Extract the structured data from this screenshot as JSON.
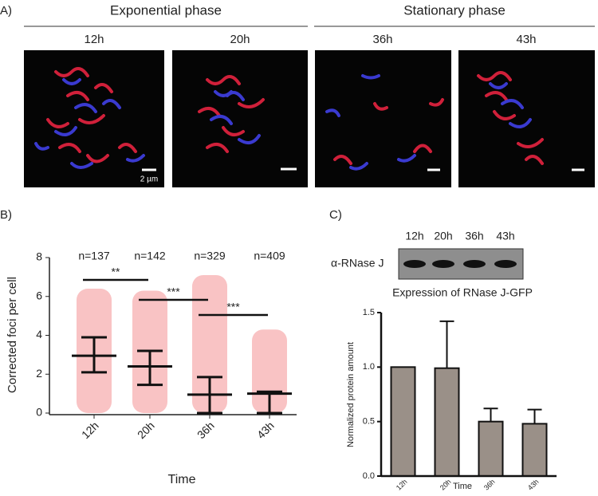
{
  "panels": {
    "a": "A)",
    "b": "B)",
    "c": "C)"
  },
  "phases": [
    "Exponential phase",
    "Stationary phase"
  ],
  "images": [
    {
      "label": "12h",
      "scale": "2 µm"
    },
    {
      "label": "20h"
    },
    {
      "label": "36h"
    },
    {
      "label": "43h"
    }
  ],
  "blot": {
    "antibody": "α-RNase J",
    "lanes": [
      "12h",
      "20h",
      "36h",
      "43h"
    ]
  },
  "chart_data": [
    {
      "type": "dotplot",
      "x_label": "Time",
      "y_label": "Corrected foci per cell",
      "categories": [
        "12h",
        "20h",
        "36h",
        "43h"
      ],
      "n_labels": [
        "n=137",
        "n=142",
        "n=329",
        "n=409"
      ],
      "medians": [
        2.95,
        2.4,
        0.95,
        1.0
      ],
      "lower": [
        2.1,
        1.45,
        0,
        0
      ],
      "upper": [
        3.9,
        3.2,
        1.85,
        1.1
      ],
      "min": [
        0,
        0,
        0,
        0
      ],
      "max": [
        6.4,
        6.3,
        7.1,
        4.3
      ],
      "color": "#e8262b",
      "ylim": [
        0,
        8
      ],
      "yticks": [
        0,
        2,
        4,
        6,
        8
      ],
      "significance": [
        {
          "text": "**",
          "from": "12h",
          "to": "20h"
        },
        {
          "text": "***",
          "from": "20h",
          "to": "36h"
        },
        {
          "text": "***",
          "from": "36h",
          "to": "43h"
        }
      ]
    },
    {
      "type": "bar",
      "title": "Expression of RNase J-GFP",
      "x_label": "Time",
      "y_label": "Normalized protein amount",
      "categories": [
        "12h",
        "20h",
        "36h",
        "43h"
      ],
      "values": [
        1.0,
        0.99,
        0.5,
        0.48
      ],
      "errors": [
        0,
        0.43,
        0.12,
        0.13
      ],
      "color": "#9a9088",
      "ylim": [
        0,
        1.5
      ],
      "yticks": [
        {
          "value": 0,
          "label": "0.0"
        },
        {
          "value": 0.5,
          "label": "0.5"
        },
        {
          "value": 1,
          "label": "1.0"
        },
        {
          "value": 1.5,
          "label": "1.5"
        }
      ]
    }
  ]
}
